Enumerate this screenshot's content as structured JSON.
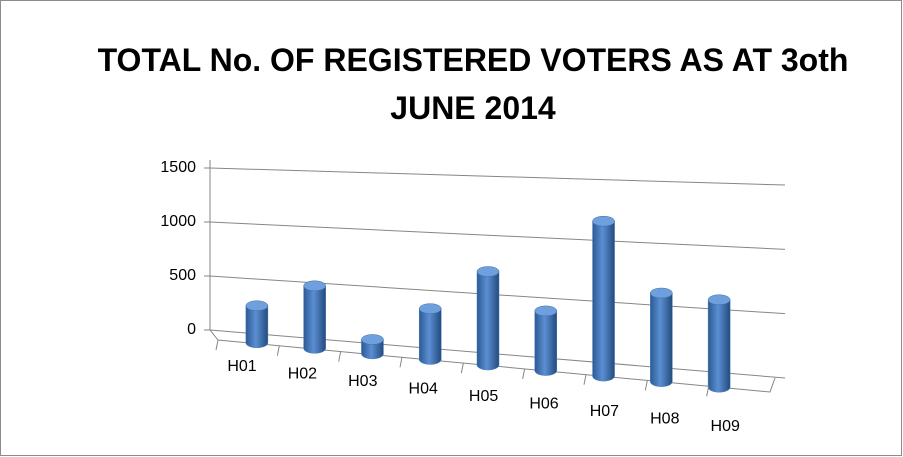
{
  "chart_data": {
    "type": "bar",
    "title": "TOTAL No. OF REGISTERED VOTERS AS AT 3oth JUNE 2014",
    "categories": [
      "H01",
      "H02",
      "H03",
      "H04",
      "H05",
      "H06",
      "H07",
      "H08",
      "H09"
    ],
    "values": [
      320,
      530,
      120,
      415,
      750,
      470,
      1200,
      675,
      655
    ],
    "color": "#4a7ebb",
    "ylim": [
      0,
      1500
    ],
    "yticks": [
      0,
      500,
      1000,
      1500
    ],
    "grid": true
  }
}
